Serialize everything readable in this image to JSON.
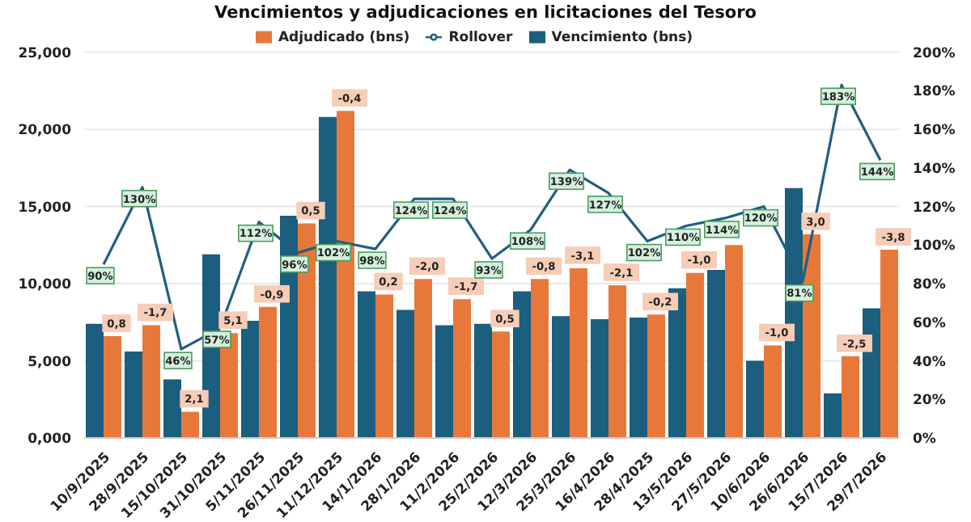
{
  "chart_data": {
    "type": "bar",
    "title": "Vencimientos y adjudicaciones en licitaciones del Tesoro",
    "categories": [
      "10/9/2025",
      "28/9/2025",
      "15/10/2025",
      "31/10/2025",
      "5/11/2025",
      "26/11/2025",
      "11/12/2025",
      "14/1/2026",
      "28/1/2026",
      "11/2/2026",
      "25/2/2026",
      "12/3/2026",
      "25/3/2026",
      "16/4/2026",
      "28/4/2025",
      "13/5/2026",
      "27/5/2026",
      "10/6/2026",
      "26/6/2026",
      "15/7/2026",
      "29/7/2026"
    ],
    "series": [
      {
        "name": "Vencimiento (bns)",
        "color": "#1b5e7e",
        "values": [
          7.4,
          5.6,
          3.8,
          11.9,
          7.6,
          14.4,
          20.8,
          9.5,
          8.3,
          7.3,
          7.4,
          9.5,
          7.9,
          7.7,
          7.8,
          9.7,
          10.9,
          5.0,
          16.2,
          2.9,
          8.4
        ]
      },
      {
        "name": "Adjudicado (bns)",
        "color": "#e8783a",
        "values": [
          6.6,
          7.3,
          1.7,
          6.8,
          8.5,
          13.9,
          21.2,
          9.3,
          10.3,
          9.0,
          6.9,
          10.3,
          11.0,
          9.9,
          8.0,
          10.7,
          12.5,
          6.0,
          13.2,
          5.3,
          12.2
        ]
      },
      {
        "name": "Rollover",
        "type": "line",
        "axis": "y2",
        "color": "#1f5f80",
        "values": [
          90,
          130,
          46,
          57,
          112,
          96,
          102,
          98,
          124,
          124,
          93,
          108,
          139,
          127,
          102,
          110,
          114,
          120,
          81,
          183,
          144
        ],
        "value_labels": [
          "90%",
          "130%",
          "46%",
          "57%",
          "112%",
          "96%",
          "102%",
          "98%",
          "124%",
          "124%",
          "93%",
          "108%",
          "139%",
          "127%",
          "102%",
          "110%",
          "114%",
          "120%",
          "81%",
          "183%",
          "144%"
        ]
      }
    ],
    "annotations": [
      {
        "text": "0,8",
        "x": "10/9/2025",
        "y": 6.6
      },
      {
        "text": "-1,7",
        "x": "28/9/2025",
        "y": 7.3
      },
      {
        "text": "2,1",
        "x": "15/10/2025",
        "y": 1.7
      },
      {
        "text": "5,1",
        "x": "31/10/2025",
        "y": 6.8
      },
      {
        "text": "-0,9",
        "x": "5/11/2025",
        "y": 8.5
      },
      {
        "text": "0,5",
        "x": "26/11/2025",
        "y": 13.9
      },
      {
        "text": "-0,4",
        "x": "11/12/2025",
        "y": 21.2
      },
      {
        "text": "0,2",
        "x": "14/1/2026",
        "y": 9.3
      },
      {
        "text": "-2,0",
        "x": "28/1/2026",
        "y": 10.3
      },
      {
        "text": "-1,7",
        "x": "11/2/2026",
        "y": 9.0
      },
      {
        "text": "0,5",
        "x": "25/2/2026",
        "y": 6.9
      },
      {
        "text": "-0,8",
        "x": "12/3/2026",
        "y": 10.3
      },
      {
        "text": "-3,1",
        "x": "25/3/2026",
        "y": 11.0
      },
      {
        "text": "-2,1",
        "x": "16/4/2026",
        "y": 9.9
      },
      {
        "text": "-0,2",
        "x": "28/4/2025",
        "y": 8.0
      },
      {
        "text": "-1,0",
        "x": "13/5/2026",
        "y": 10.7
      },
      {
        "text": "-1,0",
        "x": "10/6/2026",
        "y": 6.0
      },
      {
        "text": "3,0",
        "x": "26/6/2026",
        "y": 13.2
      },
      {
        "text": "-2,5",
        "x": "15/7/2026",
        "y": 5.3
      },
      {
        "text": "-3,8",
        "x": "29/7/2026",
        "y": 12.2
      }
    ],
    "ylim": [
      0,
      25
    ],
    "yticks": [
      {
        "value": 0,
        "label": "0,000"
      },
      {
        "value": 5,
        "label": "5,000"
      },
      {
        "value": 10,
        "label": "10,000"
      },
      {
        "value": 15,
        "label": "15,000"
      },
      {
        "value": 20,
        "label": "20,000"
      },
      {
        "value": 25,
        "label": "25,000"
      }
    ],
    "y2lim": [
      0,
      200
    ],
    "y2ticks": [
      {
        "value": 0,
        "label": "0%"
      },
      {
        "value": 20,
        "label": "20%"
      },
      {
        "value": 40,
        "label": "40%"
      },
      {
        "value": 60,
        "label": "60%"
      },
      {
        "value": 80,
        "label": "80%"
      },
      {
        "value": 100,
        "label": "100%"
      },
      {
        "value": 120,
        "label": "120%"
      },
      {
        "value": 140,
        "label": "140%"
      },
      {
        "value": 160,
        "label": "160%"
      },
      {
        "value": 180,
        "label": "180%"
      },
      {
        "value": 200,
        "label": "200%"
      }
    ],
    "grid": "y",
    "legend": "top",
    "marker": "none"
  }
}
